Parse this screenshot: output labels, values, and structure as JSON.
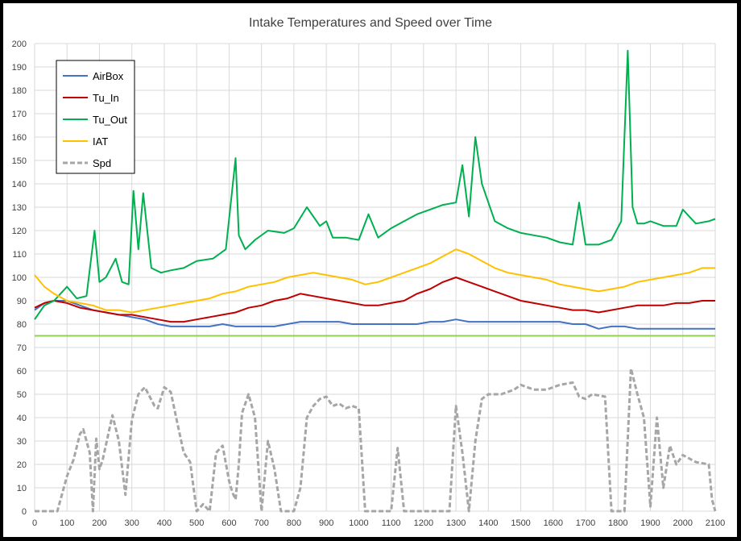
{
  "chart_data": {
    "type": "line",
    "title": "Intake Temperatures and Speed over Time",
    "xlabel": "",
    "ylabel": "",
    "xlim": [
      0,
      2100
    ],
    "ylim": [
      0,
      200
    ],
    "xticks": [
      0,
      100,
      200,
      300,
      400,
      500,
      600,
      700,
      800,
      900,
      1000,
      1100,
      1200,
      1300,
      1400,
      1500,
      1600,
      1700,
      1800,
      1900,
      2000,
      2100
    ],
    "yticks": [
      0,
      10,
      20,
      30,
      40,
      50,
      60,
      70,
      80,
      90,
      100,
      110,
      120,
      130,
      140,
      150,
      160,
      170,
      180,
      190,
      200
    ],
    "grid": true,
    "legend_position": "top-left",
    "reference_line": {
      "y": 75,
      "color": "#92D050"
    },
    "series": [
      {
        "name": "AirBox",
        "color": "#4472C4",
        "dash": false,
        "x": [
          0,
          30,
          60,
          100,
          140,
          180,
          220,
          260,
          300,
          340,
          380,
          420,
          460,
          500,
          540,
          580,
          620,
          660,
          700,
          740,
          780,
          820,
          860,
          900,
          940,
          980,
          1020,
          1060,
          1100,
          1140,
          1180,
          1220,
          1260,
          1300,
          1340,
          1380,
          1420,
          1460,
          1500,
          1540,
          1580,
          1620,
          1660,
          1700,
          1740,
          1780,
          1820,
          1860,
          1900,
          1940,
          1980,
          2020,
          2060,
          2100
        ],
        "y": [
          86,
          89,
          90,
          90,
          88,
          86,
          85,
          84,
          83,
          82,
          80,
          79,
          79,
          79,
          79,
          80,
          79,
          79,
          79,
          79,
          80,
          81,
          81,
          81,
          81,
          80,
          80,
          80,
          80,
          80,
          80,
          81,
          81,
          82,
          81,
          81,
          81,
          81,
          81,
          81,
          81,
          81,
          80,
          80,
          78,
          79,
          79,
          78,
          78,
          78,
          78,
          78,
          78,
          78
        ]
      },
      {
        "name": "Tu_In",
        "color": "#C00000",
        "dash": false,
        "x": [
          0,
          30,
          60,
          100,
          140,
          180,
          220,
          260,
          300,
          340,
          380,
          420,
          460,
          500,
          540,
          580,
          620,
          660,
          700,
          740,
          780,
          820,
          860,
          900,
          940,
          980,
          1020,
          1060,
          1100,
          1140,
          1180,
          1220,
          1260,
          1300,
          1340,
          1380,
          1420,
          1460,
          1500,
          1540,
          1580,
          1620,
          1660,
          1700,
          1740,
          1780,
          1820,
          1860,
          1900,
          1940,
          1980,
          2020,
          2060,
          2100
        ],
        "y": [
          87,
          89,
          90,
          89,
          87,
          86,
          85,
          84,
          84,
          83,
          82,
          81,
          81,
          82,
          83,
          84,
          85,
          87,
          88,
          90,
          91,
          93,
          92,
          91,
          90,
          89,
          88,
          88,
          89,
          90,
          93,
          95,
          98,
          100,
          98,
          96,
          94,
          92,
          90,
          89,
          88,
          87,
          86,
          86,
          85,
          86,
          87,
          88,
          88,
          88,
          89,
          89,
          90,
          90
        ]
      },
      {
        "name": "Tu_Out",
        "color": "#00B050",
        "dash": false,
        "x": [
          0,
          30,
          60,
          100,
          130,
          160,
          185,
          200,
          220,
          250,
          270,
          290,
          305,
          320,
          335,
          360,
          390,
          420,
          460,
          500,
          550,
          590,
          620,
          630,
          650,
          680,
          720,
          770,
          800,
          840,
          880,
          900,
          920,
          960,
          1000,
          1030,
          1060,
          1100,
          1140,
          1180,
          1220,
          1260,
          1300,
          1320,
          1340,
          1360,
          1380,
          1420,
          1460,
          1500,
          1540,
          1580,
          1620,
          1660,
          1680,
          1700,
          1740,
          1780,
          1810,
          1830,
          1845,
          1860,
          1880,
          1900,
          1940,
          1980,
          2000,
          2040,
          2080,
          2100
        ],
        "y": [
          82,
          88,
          90,
          96,
          91,
          92,
          120,
          98,
          100,
          108,
          98,
          97,
          137,
          112,
          136,
          104,
          102,
          103,
          104,
          107,
          108,
          112,
          151,
          118,
          112,
          116,
          120,
          119,
          121,
          130,
          122,
          124,
          117,
          117,
          116,
          127,
          117,
          121,
          124,
          127,
          129,
          131,
          132,
          148,
          126,
          160,
          140,
          124,
          121,
          119,
          118,
          117,
          115,
          114,
          132,
          114,
          114,
          116,
          124,
          197,
          130,
          123,
          123,
          124,
          122,
          122,
          129,
          123,
          124,
          125
        ]
      },
      {
        "name": "IAT",
        "color": "#FFC000",
        "dash": false,
        "x": [
          0,
          30,
          60,
          100,
          140,
          180,
          220,
          260,
          300,
          340,
          380,
          420,
          460,
          500,
          540,
          580,
          620,
          660,
          700,
          740,
          780,
          820,
          860,
          900,
          940,
          980,
          1020,
          1060,
          1100,
          1140,
          1180,
          1220,
          1260,
          1300,
          1340,
          1380,
          1420,
          1460,
          1500,
          1540,
          1580,
          1620,
          1660,
          1700,
          1740,
          1780,
          1820,
          1860,
          1900,
          1940,
          1980,
          2020,
          2060,
          2100
        ],
        "y": [
          101,
          96,
          93,
          90,
          89,
          88,
          86,
          86,
          85,
          86,
          87,
          88,
          89,
          90,
          91,
          93,
          94,
          96,
          97,
          98,
          100,
          101,
          102,
          101,
          100,
          99,
          97,
          98,
          100,
          102,
          104,
          106,
          109,
          112,
          110,
          107,
          104,
          102,
          101,
          100,
          99,
          97,
          96,
          95,
          94,
          95,
          96,
          98,
          99,
          100,
          101,
          102,
          104,
          104
        ]
      },
      {
        "name": "Spd",
        "color": "#A6A6A6",
        "dash": true,
        "x": [
          0,
          50,
          70,
          100,
          120,
          140,
          150,
          170,
          180,
          190,
          200,
          210,
          240,
          260,
          280,
          300,
          320,
          340,
          370,
          380,
          400,
          420,
          440,
          460,
          480,
          500,
          520,
          540,
          560,
          580,
          600,
          610,
          620,
          630,
          640,
          660,
          680,
          700,
          720,
          740,
          760,
          800,
          820,
          840,
          860,
          880,
          900,
          920,
          940,
          960,
          980,
          1000,
          1020,
          1040,
          1080,
          1100,
          1120,
          1140,
          1200,
          1240,
          1280,
          1300,
          1320,
          1340,
          1360,
          1380,
          1400,
          1440,
          1480,
          1500,
          1540,
          1580,
          1620,
          1660,
          1680,
          1700,
          1720,
          1760,
          1780,
          1800,
          1820,
          1840,
          1860,
          1880,
          1900,
          1920,
          1940,
          1960,
          1980,
          2000,
          2040,
          2080,
          2090,
          2100
        ],
        "y": [
          0,
          0,
          0,
          15,
          22,
          33,
          35,
          25,
          0,
          31,
          18,
          22,
          41,
          30,
          7,
          39,
          50,
          53,
          45,
          44,
          53,
          51,
          38,
          25,
          21,
          0,
          3,
          0,
          25,
          28,
          13,
          8,
          5,
          20,
          42,
          50,
          40,
          0,
          30,
          18,
          0,
          0,
          10,
          40,
          45,
          48,
          49,
          45,
          46,
          44,
          45,
          44,
          0,
          0,
          0,
          0,
          27,
          0,
          0,
          0,
          0,
          45,
          25,
          0,
          30,
          48,
          50,
          50,
          52,
          54,
          52,
          52,
          54,
          55,
          49,
          48,
          50,
          49,
          0,
          0,
          0,
          61,
          50,
          40,
          2,
          40,
          10,
          28,
          20,
          24,
          21,
          20,
          5,
          0
        ]
      }
    ]
  }
}
